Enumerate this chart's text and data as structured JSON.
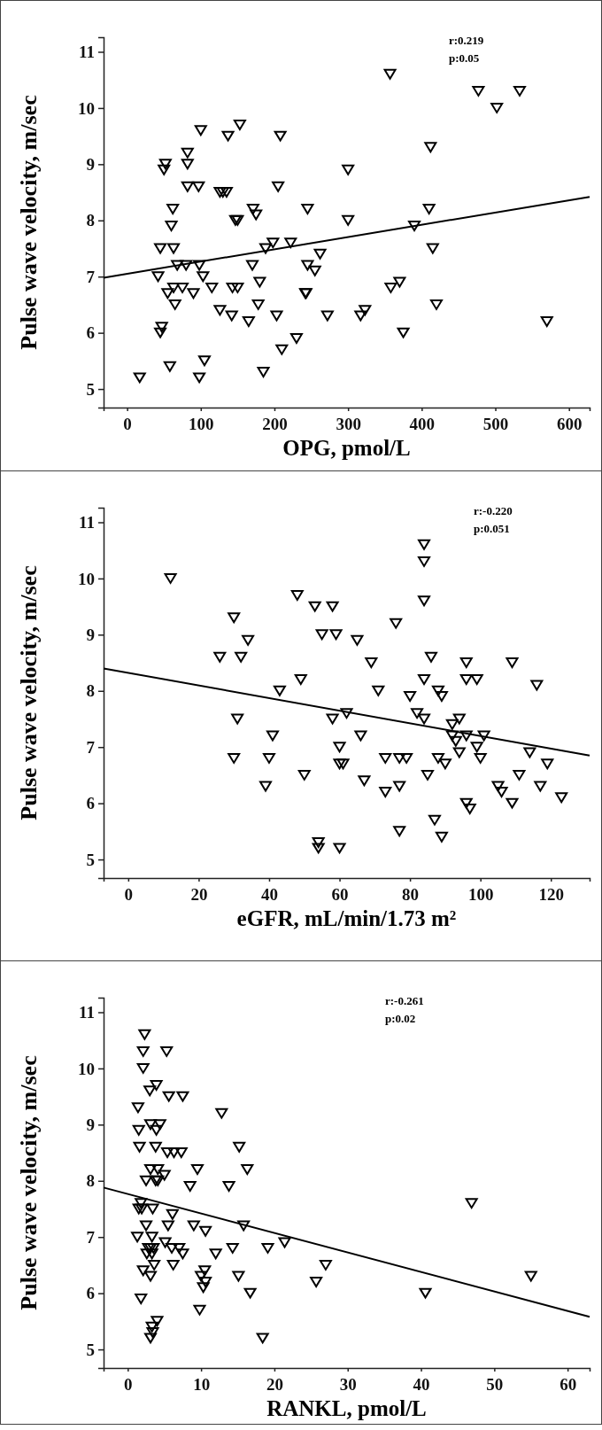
{
  "chart_data": [
    {
      "type": "scatter",
      "xlabel": "OPG, pmol/L",
      "ylabel": "Pulse wave velocity, m/sec",
      "annotations": [
        "r:0.219",
        "p:0.05"
      ],
      "xlim": [
        -32,
        628
      ],
      "ylim": [
        4.67,
        11.26
      ],
      "xticks": [
        0,
        100,
        200,
        300,
        400,
        500,
        600
      ],
      "yticks": [
        5,
        6,
        7,
        8,
        9,
        10,
        11
      ],
      "marker": "triangle",
      "series": [
        {
          "type": "scatter",
          "color": "#000000",
          "x": [
            17,
            42,
            45,
            47,
            45,
            50,
            52,
            55,
            58,
            60,
            62,
            63,
            63,
            65,
            68,
            75,
            80,
            82,
            82,
            82,
            90,
            97,
            98,
            98,
            100,
            103,
            105,
            115,
            126,
            126,
            130,
            135,
            137,
            142,
            143,
            147,
            150,
            150,
            153,
            165,
            170,
            171,
            175,
            178,
            180,
            185,
            188,
            198,
            203,
            205,
            208,
            210,
            222,
            230,
            245,
            245,
            242,
            243,
            255,
            262,
            272,
            300,
            300,
            317,
            323,
            357,
            358,
            370,
            375,
            390,
            410,
            412,
            415,
            420,
            477,
            502,
            533,
            570
          ],
          "values": [
            5.2,
            7.0,
            6.0,
            6.1,
            7.5,
            8.9,
            9.0,
            6.7,
            5.4,
            7.9,
            8.2,
            7.5,
            6.8,
            6.5,
            7.2,
            6.8,
            7.2,
            9.2,
            9.0,
            8.6,
            6.7,
            8.6,
            7.2,
            5.2,
            9.6,
            7.0,
            5.5,
            6.8,
            6.4,
            8.5,
            8.5,
            8.5,
            9.5,
            6.3,
            6.8,
            8.0,
            8.0,
            6.8,
            9.7,
            6.2,
            7.2,
            8.2,
            8.1,
            6.5,
            6.9,
            5.3,
            7.5,
            7.6,
            6.3,
            8.6,
            9.5,
            5.7,
            7.6,
            5.9,
            8.2,
            7.2,
            6.7,
            6.7,
            7.1,
            7.4,
            6.3,
            8.9,
            8.0,
            6.3,
            6.4,
            10.6,
            6.8,
            6.9,
            6.0,
            7.9,
            8.2,
            9.3,
            7.5,
            6.5,
            10.3,
            10.0,
            10.3,
            6.2
          ]
        },
        {
          "type": "line",
          "color": "#000000",
          "marker": "none",
          "x": [
            -32,
            628
          ],
          "values": [
            6.98,
            8.42
          ]
        }
      ]
    },
    {
      "type": "scatter",
      "xlabel": "eGFR, mL/min/1.73 m²",
      "ylabel": "Pulse wave velocity, m/sec",
      "annotations": [
        "r:-0.220",
        "p:0.051"
      ],
      "xlim": [
        -7,
        131
      ],
      "ylim": [
        4.67,
        11.26
      ],
      "xticks": [
        0,
        20,
        40,
        60,
        80,
        100,
        120
      ],
      "yticks": [
        5,
        6,
        7,
        8,
        9,
        10,
        11
      ],
      "marker": "triangle",
      "series": [
        {
          "type": "scatter",
          "color": "#000000",
          "x": [
            12,
            26,
            30,
            30,
            31,
            32,
            34,
            39,
            40,
            41,
            43,
            48,
            49,
            50,
            53,
            54,
            54,
            55,
            58,
            58,
            59,
            60,
            60,
            61,
            60,
            62,
            65,
            66,
            67,
            69,
            71,
            73,
            73,
            76,
            77,
            77,
            77,
            79,
            80,
            82,
            84,
            84,
            84,
            84,
            84,
            85,
            86,
            87,
            88,
            88,
            89,
            89,
            90,
            92,
            92,
            93,
            94,
            94,
            96,
            96,
            96,
            96,
            97,
            99,
            99,
            100,
            101,
            105,
            106,
            109,
            109,
            111,
            114,
            116,
            117,
            119,
            123
          ],
          "values": [
            10.0,
            8.6,
            9.3,
            6.8,
            7.5,
            8.6,
            8.9,
            6.3,
            6.8,
            7.2,
            8.0,
            9.7,
            8.2,
            6.5,
            9.5,
            5.3,
            5.2,
            9.0,
            7.5,
            9.5,
            9.0,
            7.0,
            6.7,
            6.7,
            5.2,
            7.6,
            8.9,
            7.2,
            6.4,
            8.5,
            8.0,
            6.8,
            6.2,
            9.2,
            6.8,
            6.3,
            5.5,
            6.8,
            7.9,
            7.6,
            10.6,
            10.3,
            9.6,
            8.2,
            7.5,
            6.5,
            8.6,
            5.7,
            6.8,
            8.0,
            7.9,
            5.4,
            6.7,
            7.4,
            7.2,
            7.1,
            7.5,
            6.9,
            8.5,
            8.2,
            7.2,
            6.0,
            5.9,
            8.2,
            7.0,
            6.8,
            7.2,
            6.3,
            6.2,
            8.5,
            6.0,
            6.5,
            6.9,
            8.1,
            6.3,
            6.7,
            6.1
          ]
        },
        {
          "type": "line",
          "color": "#000000",
          "marker": "none",
          "x": [
            -7,
            131
          ],
          "values": [
            8.4,
            6.85
          ]
        }
      ]
    },
    {
      "type": "scatter",
      "xlabel": "RANKL, pmol/L",
      "ylabel": "Pulse wave velocity, m/sec",
      "annotations": [
        "r:-0.261",
        "p:0.02"
      ],
      "xlim": [
        -3.3,
        63
      ],
      "ylim": [
        4.67,
        11.26
      ],
      "xticks": [
        0,
        10,
        20,
        30,
        40,
        50,
        60
      ],
      "yticks": [
        5,
        6,
        7,
        8,
        9,
        10,
        11
      ],
      "marker": "triangle",
      "series": [
        {
          "type": "scatter",
          "color": "#000000",
          "x": [
            2.3,
            2.1,
            5.3,
            2.1,
            3.9,
            3.0,
            5.6,
            7.5,
            1.4,
            12.8,
            1.5,
            3.1,
            4.4,
            3.9,
            1.6,
            3.8,
            5.4,
            6.3,
            7.3,
            15.2,
            3.1,
            4.1,
            9.5,
            16.3,
            2.5,
            3.8,
            4.1,
            5.0,
            8.5,
            13.8,
            1.8,
            1.5,
            1.9,
            3.4,
            6.1,
            2.5,
            5.5,
            9.0,
            10.6,
            15.8,
            46.9,
            1.3,
            3.3,
            5.1,
            21.4,
            2.8,
            3.1,
            3.5,
            6.0,
            7.0,
            14.3,
            19.1,
            2.6,
            3.3,
            7.5,
            12.0,
            2.1,
            3.6,
            6.2,
            10.5,
            27.0,
            3.1,
            10.0,
            15.1,
            55.0,
            10.6,
            25.7,
            10.3,
            16.7,
            40.6,
            1.8,
            9.8,
            4.0,
            3.3,
            3.4,
            3.1,
            18.4
          ],
          "values": [
            10.6,
            10.3,
            10.3,
            10.0,
            9.7,
            9.6,
            9.5,
            9.5,
            9.3,
            9.2,
            8.9,
            9.0,
            9.0,
            8.9,
            8.6,
            8.6,
            8.5,
            8.5,
            8.5,
            8.6,
            8.2,
            8.2,
            8.2,
            8.2,
            8.0,
            8.0,
            8.0,
            8.1,
            7.9,
            7.9,
            7.6,
            7.5,
            7.5,
            7.5,
            7.4,
            7.2,
            7.2,
            7.2,
            7.1,
            7.2,
            7.6,
            7.0,
            7.0,
            6.9,
            6.9,
            6.8,
            6.8,
            6.8,
            6.8,
            6.8,
            6.8,
            6.8,
            6.7,
            6.7,
            6.7,
            6.7,
            6.4,
            6.5,
            6.5,
            6.4,
            6.5,
            6.3,
            6.3,
            6.3,
            6.3,
            6.2,
            6.2,
            6.1,
            6.0,
            6.0,
            5.9,
            5.7,
            5.5,
            5.4,
            5.3,
            5.2,
            5.2
          ]
        },
        {
          "type": "line",
          "color": "#000000",
          "marker": "none",
          "x": [
            -3.3,
            63
          ],
          "values": [
            7.88,
            5.58
          ]
        }
      ]
    }
  ]
}
